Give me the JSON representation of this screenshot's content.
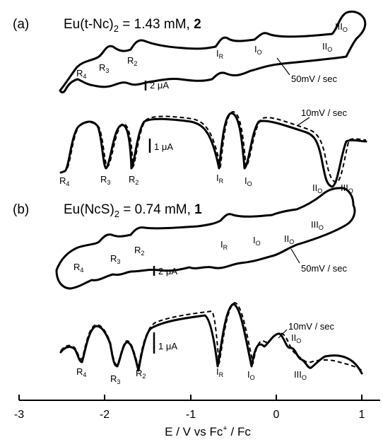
{
  "panel_a": {
    "tag": "(a)",
    "title_prefix": "Eu(t-Nc)",
    "title_subscript": "2",
    "title_mid": " = 1.43 mM, ",
    "title_compound": "2",
    "cv_scan_rate": "50mV / sec",
    "cv_scale": "2 μA",
    "dpv_scan_rate": "10mV / sec",
    "dpv_scale": "1 μA",
    "cv_labels": [
      {
        "main": "R",
        "sub": "4"
      },
      {
        "main": "R",
        "sub": "3"
      },
      {
        "main": "R",
        "sub": "2"
      },
      {
        "main": "I",
        "sub": "R"
      },
      {
        "main": "I",
        "sub": "O"
      },
      {
        "main": "II",
        "sub": "O"
      },
      {
        "main": "III",
        "sub": "O"
      }
    ],
    "dpv_labels": [
      {
        "main": "R",
        "sub": "4"
      },
      {
        "main": "R",
        "sub": "3"
      },
      {
        "main": "R",
        "sub": "2"
      },
      {
        "main": "I",
        "sub": "R"
      },
      {
        "main": "I",
        "sub": "O"
      },
      {
        "main": "II",
        "sub": "O"
      },
      {
        "main": "III",
        "sub": "O"
      }
    ]
  },
  "panel_b": {
    "tag": "(b)",
    "title_prefix": "Eu(NcS)",
    "title_subscript": "2",
    "title_mid": " = 0.74 mM, ",
    "title_compound": "1",
    "cv_scan_rate": "50mV / sec",
    "cv_scale": "2 μA",
    "dpv_scan_rate": "10mV / sec",
    "dpv_scale": "1 μA",
    "cv_labels": [
      {
        "main": "R",
        "sub": "4"
      },
      {
        "main": "R",
        "sub": "3"
      },
      {
        "main": "R",
        "sub": "2"
      },
      {
        "main": "I",
        "sub": "R"
      },
      {
        "main": "I",
        "sub": "O"
      },
      {
        "main": "II",
        "sub": "O"
      },
      {
        "main": "III",
        "sub": "O"
      }
    ],
    "dpv_labels": [
      {
        "main": "R",
        "sub": "4"
      },
      {
        "main": "R",
        "sub": "3"
      },
      {
        "main": "R",
        "sub": "2"
      },
      {
        "main": "I",
        "sub": "R"
      },
      {
        "main": "I",
        "sub": "O"
      },
      {
        "main": "II",
        "sub": "O"
      },
      {
        "main": "III",
        "sub": "O"
      }
    ]
  },
  "x_axis": {
    "ticks": [
      "-3",
      "-2",
      "-1",
      "0",
      "1"
    ],
    "label_prefix": "E / V vs Fc",
    "label_sup": "+",
    "label_suffix": " / Fc"
  }
}
